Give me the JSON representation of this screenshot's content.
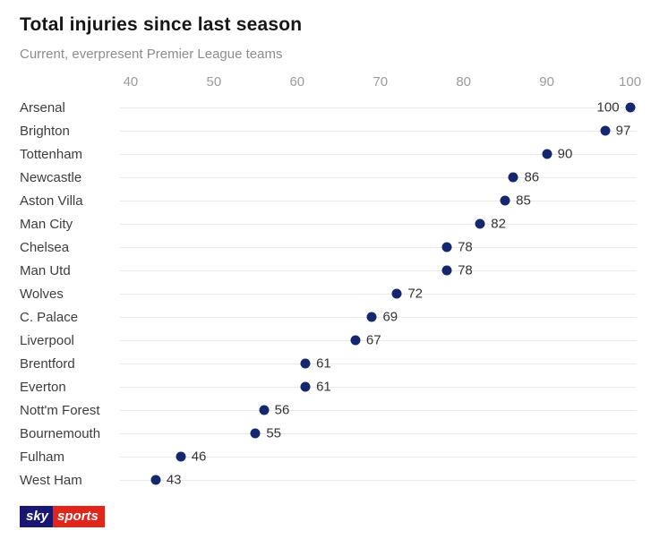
{
  "header": {
    "title": "Total injuries since last season",
    "subtitle": "Current, everpresent Premier League teams"
  },
  "chart_data": {
    "type": "scatter",
    "variant": "horizontal-dot-plot",
    "title": "Total injuries since last season",
    "subtitle": "Current, everpresent Premier League teams",
    "categories": [
      "Arsenal",
      "Brighton",
      "Tottenham",
      "Newcastle",
      "Aston Villa",
      "Man City",
      "Chelsea",
      "Man Utd",
      "Wolves",
      "C. Palace",
      "Liverpool",
      "Brentford",
      "Everton",
      "Nott'm Forest",
      "Bournemouth",
      "Fulham",
      "West Ham"
    ],
    "values": [
      100,
      97,
      90,
      86,
      85,
      82,
      78,
      78,
      72,
      69,
      67,
      61,
      61,
      56,
      55,
      46,
      43
    ],
    "x_ticks": [
      40,
      50,
      60,
      70,
      80,
      90,
      100
    ],
    "xlim": [
      38.5,
      100.8
    ],
    "grid": "row-lines",
    "dot_color": "#16286d",
    "value_label_color": "#333333",
    "tick_color": "#9b9b9b"
  },
  "footer": {
    "logo_sky": "sky",
    "logo_sports": "sports",
    "logo_sky_bg": "#1a1773",
    "logo_sports_bg": "#e1251b"
  }
}
